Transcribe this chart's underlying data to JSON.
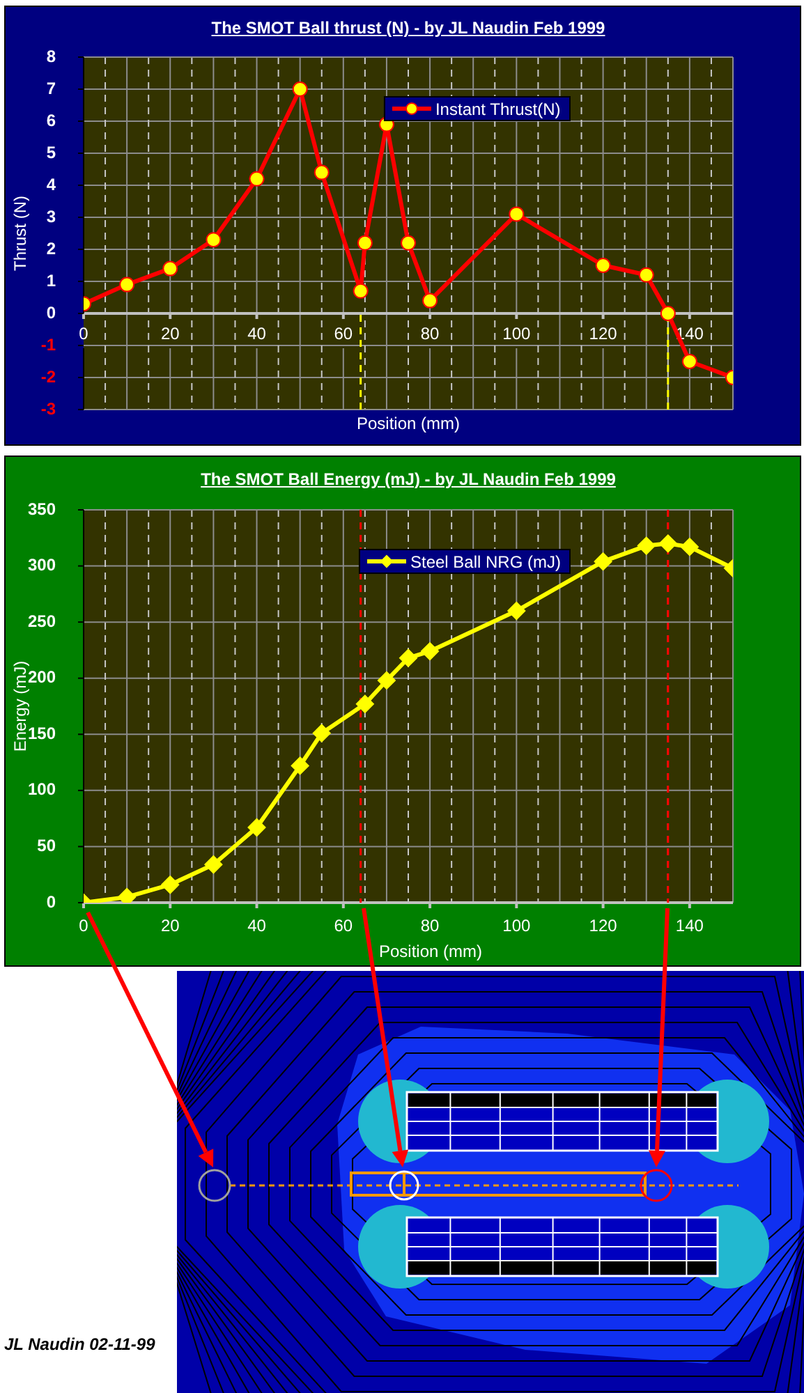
{
  "chart_data": [
    {
      "type": "line",
      "title": "The SMOT Ball thrust (N) - by JL Naudin Feb 1999",
      "xlabel": "Position (mm)",
      "ylabel": "Thrust (N)",
      "x": [
        0,
        10,
        20,
        30,
        40,
        50,
        55,
        64,
        65,
        70,
        75,
        80,
        100,
        120,
        130,
        135,
        140,
        150
      ],
      "series": [
        {
          "name": "Instant Thrust(N)",
          "color": "#ff0000",
          "colors": [
            "#ffff00",
            "#ffff00",
            "#ffff00",
            "#ffff00",
            "#ffff00",
            "#ffff00",
            "#ffff00",
            "#ffff00",
            "#ffff00",
            "#ffff00",
            "#ffff00",
            "#ffff00",
            "#ffff00",
            "#ffff00",
            "#ffff00",
            "#ffff00",
            "#ffff00",
            "#ffff00"
          ],
          "values": [
            0.3,
            0.9,
            1.4,
            2.3,
            4.2,
            7.0,
            4.4,
            0.7,
            2.2,
            5.9,
            2.2,
            0.4,
            3.1,
            1.5,
            1.2,
            0,
            -1.5,
            -2.0
          ]
        }
      ],
      "xlim": [
        0,
        150
      ],
      "xticks": [
        0,
        {
          "value": 10,
          "label": null
        },
        20,
        {
          "value": 30,
          "label": null
        },
        40,
        {
          "value": 50,
          "label": null
        },
        60,
        {
          "value": 70,
          "label": null
        },
        80,
        {
          "value": 90,
          "label": null
        },
        100,
        {
          "value": 110,
          "label": null
        },
        120,
        {
          "value": 130,
          "label": null
        },
        140
      ],
      "ylim": [
        -3,
        8
      ],
      "yticks": [
        -3,
        -2,
        -1,
        0,
        1,
        2,
        3,
        4,
        5,
        6,
        7,
        8
      ],
      "grid": true,
      "legend": "top right",
      "marker": "circle",
      "ref_lines": [
        {
          "axis": "x",
          "value": 64,
          "color": "#ffff00",
          "line_style": "dashed"
        },
        {
          "axis": "x",
          "value": 135,
          "color": "#ffff00",
          "line_style": "dashed"
        }
      ]
    },
    {
      "type": "line",
      "title": "The SMOT Ball Energy (mJ) - by JL Naudin Feb 1999",
      "xlabel": "Position (mm)",
      "ylabel": "Energy (mJ)",
      "x": [
        0,
        10,
        20,
        30,
        40,
        50,
        55,
        65,
        70,
        75,
        80,
        100,
        120,
        130,
        135,
        140,
        150
      ],
      "series": [
        {
          "name": "Steel Ball NRG (mJ)",
          "color": "#ffff00",
          "values": [
            0,
            5,
            16,
            34,
            67,
            122,
            151,
            177,
            198,
            218,
            224,
            260,
            304,
            318,
            320,
            317,
            298
          ]
        }
      ],
      "xlim": [
        0,
        150
      ],
      "xticks": [
        0,
        {
          "value": 10,
          "label": null
        },
        20,
        {
          "value": 30,
          "label": null
        },
        40,
        {
          "value": 50,
          "label": null
        },
        60,
        {
          "value": 70,
          "label": null
        },
        80,
        {
          "value": 90,
          "label": null
        },
        100,
        {
          "value": 110,
          "label": null
        },
        120,
        {
          "value": 130,
          "label": null
        },
        140
      ],
      "ylim": [
        0,
        350
      ],
      "yticks": [
        0,
        50,
        100,
        150,
        200,
        250,
        300,
        350
      ],
      "grid": true,
      "legend": "top right",
      "marker": "diamond",
      "ref_lines": [
        {
          "axis": "x",
          "value": 64,
          "color": "#ff0000",
          "line_style": "dashed"
        },
        {
          "axis": "x",
          "value": 135,
          "color": "#ff0000",
          "line_style": "dashed"
        }
      ],
      "annotations": [
        "JL Naudin 02-11-99"
      ]
    }
  ]
}
